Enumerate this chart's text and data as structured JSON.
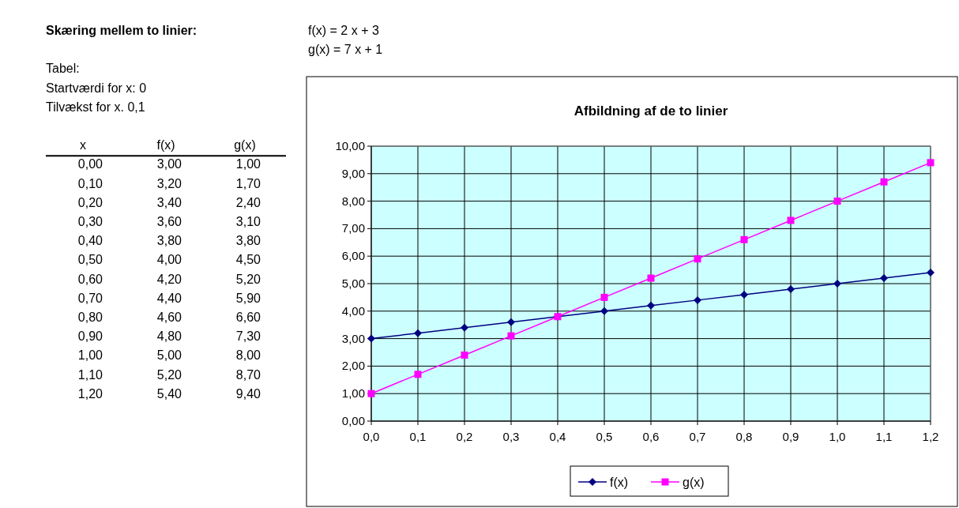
{
  "chart_data": {
    "type": "line",
    "title": "Afbildning af de to linier",
    "x": [
      0,
      0.1,
      0.2,
      0.3,
      0.4,
      0.5,
      0.6,
      0.7,
      0.8,
      0.9,
      1.0,
      1.1,
      1.2
    ],
    "series": [
      {
        "name": "f(x)",
        "color": "#000080",
        "marker": "diamond",
        "values": [
          3.0,
          3.2,
          3.4,
          3.6,
          3.8,
          4.0,
          4.2,
          4.4,
          4.6,
          4.8,
          5.0,
          5.2,
          5.4
        ]
      },
      {
        "name": "g(x)",
        "color": "#ff00ff",
        "marker": "square",
        "values": [
          1.0,
          1.7,
          2.4,
          3.1,
          3.8,
          4.5,
          5.2,
          5.9,
          6.6,
          7.3,
          8.0,
          8.7,
          9.4
        ]
      }
    ],
    "xlim": [
      0,
      1.2
    ],
    "xticks": [
      {
        "value": 0,
        "label": "0,0"
      },
      {
        "value": 0.1,
        "label": "0,1"
      },
      {
        "value": 0.2,
        "label": "0,2"
      },
      {
        "value": 0.3,
        "label": "0,3"
      },
      {
        "value": 0.4,
        "label": "0,4"
      },
      {
        "value": 0.5,
        "label": "0,5"
      },
      {
        "value": 0.6,
        "label": "0,6"
      },
      {
        "value": 0.7,
        "label": "0,7"
      },
      {
        "value": 0.8,
        "label": "0,8"
      },
      {
        "value": 0.9,
        "label": "0,9"
      },
      {
        "value": 1.0,
        "label": "1,0"
      },
      {
        "value": 1.1,
        "label": "1,1"
      },
      {
        "value": 1.2,
        "label": "1,2"
      }
    ],
    "ylim": [
      0,
      10
    ],
    "yticks": [
      {
        "value": 0,
        "label": "0,00"
      },
      {
        "value": 1,
        "label": "1,00"
      },
      {
        "value": 2,
        "label": "2,00"
      },
      {
        "value": 3,
        "label": "3,00"
      },
      {
        "value": 4,
        "label": "4,00"
      },
      {
        "value": 5,
        "label": "5,00"
      },
      {
        "value": 6,
        "label": "6,00"
      },
      {
        "value": 7,
        "label": "7,00"
      },
      {
        "value": 8,
        "label": "8,00"
      },
      {
        "value": 9,
        "label": "9,00"
      },
      {
        "value": 10,
        "label": "10,00"
      }
    ],
    "grid": true,
    "legend": "bottom",
    "annotations": [
      "Skæring mellem to linier:",
      "f(x) = 2 x + 3",
      "g(x) = 7 x + 1",
      "Tabel:",
      "Startværdi for x: 0",
      "Tilvækst for x. 0,1",
      "x",
      "f(x)",
      "g(x)",
      "0,00",
      "3,00",
      "1,00",
      "0,10",
      "3,20",
      "1,70",
      "0,20",
      "3,40",
      "2,40",
      "0,30",
      "3,60",
      "3,10",
      "0,40",
      "3,80",
      "3,80",
      "0,50",
      "4,00",
      "4,50",
      "0,60",
      "4,20",
      "5,20",
      "0,70",
      "4,40",
      "5,90",
      "0,80",
      "4,60",
      "6,60",
      "0,90",
      "4,80",
      "7,30",
      "1,00",
      "5,00",
      "8,00",
      "1,10",
      "5,20",
      "8,70",
      "1,20",
      "5,40",
      "9,40"
    ]
  }
}
